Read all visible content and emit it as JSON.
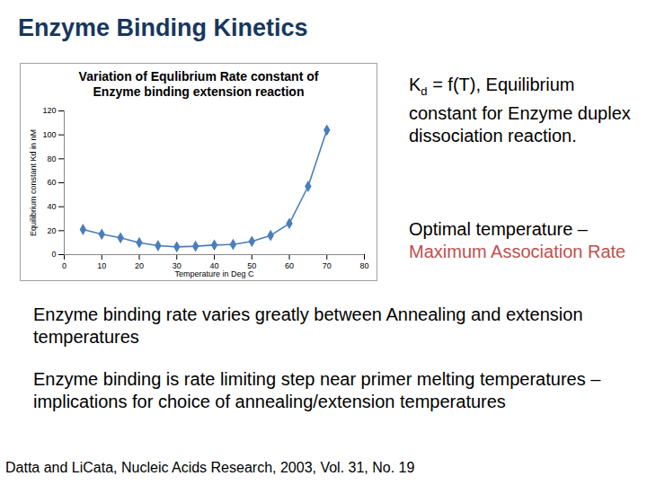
{
  "slide": {
    "title": "Enzyme Binding Kinetics",
    "side_text": [
      {
        "parts": [
          {
            "text": "K"
          },
          {
            "text": "d",
            "sub": true
          },
          {
            "text": "  = f(T),  Equilibrium constant for Enzyme duplex dissociation reaction."
          }
        ]
      },
      {
        "parts": [
          {
            "text": "Optimal temperature – "
          },
          {
            "text": "Maximum Association Rate",
            "color": "#c0504d"
          }
        ]
      }
    ],
    "body_text": [
      "Enzyme binding rate varies greatly between Annealing and extension temperatures",
      "Enzyme binding is rate limiting step near primer melting temperatures –implications for choice of annealing/extension temperatures"
    ],
    "citation": "Datta and LiCata, Nucleic Acids Research, 2003, Vol. 31, No. 19"
  },
  "chart_data": {
    "type": "line",
    "title": "Variation of Equlibrium Rate constant of Enzyme binding extension reaction",
    "x_label": "Temperature in Deg C",
    "y_label": "Equilibrium constant Kd in nM",
    "x": [
      5,
      10,
      15,
      20,
      25,
      30,
      35,
      40,
      45,
      50,
      55,
      60,
      65,
      70
    ],
    "values": [
      21,
      17,
      14,
      10,
      7.5,
      6.5,
      7,
      8,
      8.5,
      11,
      16,
      26,
      57,
      104
    ],
    "color": "#4a7ebb",
    "marker": "diamond",
    "xlim": [
      0,
      80
    ],
    "xticks": [
      0,
      10,
      20,
      30,
      40,
      50,
      60,
      70,
      80
    ],
    "ylim": [
      0,
      120
    ],
    "yticks": [
      0,
      20,
      40,
      60,
      80,
      100,
      120
    ],
    "grid": false
  }
}
